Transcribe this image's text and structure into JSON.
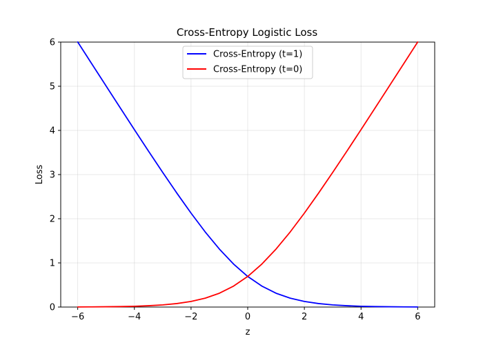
{
  "chart_data": {
    "type": "line",
    "title": "Cross-Entropy Logistic Loss",
    "xlabel": "z",
    "ylabel": "Loss",
    "xlim": [
      -6.6,
      6.6
    ],
    "ylim": [
      0,
      6
    ],
    "grid": true,
    "legend_position": "top-center",
    "x_ticks": [
      {
        "value": -6,
        "label": "−6"
      },
      {
        "value": -4,
        "label": "−4"
      },
      {
        "value": -2,
        "label": "−2"
      },
      {
        "value": 0,
        "label": "0"
      },
      {
        "value": 2,
        "label": "2"
      },
      {
        "value": 4,
        "label": "4"
      },
      {
        "value": 6,
        "label": "6"
      }
    ],
    "y_ticks": [
      {
        "value": 0,
        "label": "0"
      },
      {
        "value": 1,
        "label": "1"
      },
      {
        "value": 2,
        "label": "2"
      },
      {
        "value": 3,
        "label": "3"
      },
      {
        "value": 4,
        "label": "4"
      },
      {
        "value": 5,
        "label": "5"
      },
      {
        "value": 6,
        "label": "6"
      }
    ],
    "x": [
      -6,
      -5.5,
      -5,
      -4.5,
      -4,
      -3.5,
      -3,
      -2.5,
      -2,
      -1.5,
      -1,
      -0.5,
      0,
      0.5,
      1,
      1.5,
      2,
      2.5,
      3,
      3.5,
      4,
      4.5,
      5,
      5.5,
      6
    ],
    "series": [
      {
        "name": "Cross-Entropy (t=1)",
        "color": "#0000ff",
        "values": [
          6.002,
          5.504,
          5.007,
          4.511,
          4.018,
          3.529,
          3.049,
          2.579,
          2.127,
          1.701,
          1.313,
          0.974,
          0.693,
          0.474,
          0.313,
          0.201,
          0.127,
          0.079,
          0.049,
          0.03,
          0.018,
          0.011,
          0.007,
          0.004,
          0.002
        ]
      },
      {
        "name": "Cross-Entropy (t=0)",
        "color": "#ff0000",
        "values": [
          0.002,
          0.004,
          0.007,
          0.011,
          0.018,
          0.03,
          0.049,
          0.079,
          0.127,
          0.201,
          0.313,
          0.474,
          0.693,
          0.974,
          1.313,
          1.701,
          2.127,
          2.579,
          3.049,
          3.529,
          4.018,
          4.511,
          5.007,
          5.504,
          6.002
        ]
      }
    ]
  }
}
